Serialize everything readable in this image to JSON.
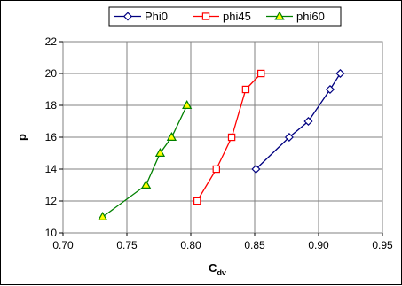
{
  "chart_data": {
    "type": "line",
    "title": "",
    "xlabel": "C",
    "xlabel_sub": "dv",
    "ylabel": "p",
    "xlim": [
      0.7,
      0.95
    ],
    "ylim": [
      10,
      22
    ],
    "xticks": [
      "0.70",
      "0.75",
      "0.80",
      "0.85",
      "0.90",
      "0.95"
    ],
    "yticks": [
      "10",
      "12",
      "14",
      "16",
      "18",
      "20",
      "22"
    ],
    "grid": true,
    "legend_position": "top",
    "series": [
      {
        "name": "Phi0",
        "color": "#000080",
        "marker": "diamond",
        "points": [
          [
            0.851,
            14
          ],
          [
            0.877,
            16
          ],
          [
            0.892,
            17
          ],
          [
            0.909,
            19
          ],
          [
            0.917,
            20
          ]
        ]
      },
      {
        "name": "phi45",
        "color": "#ff0000",
        "marker": "square",
        "points": [
          [
            0.805,
            12
          ],
          [
            0.82,
            14
          ],
          [
            0.832,
            16
          ],
          [
            0.843,
            19
          ],
          [
            0.855,
            20
          ]
        ]
      },
      {
        "name": "phi60",
        "color": "#008000",
        "marker": "triangle",
        "marker_fill": "#ffff00",
        "points": [
          [
            0.731,
            11
          ],
          [
            0.765,
            13
          ],
          [
            0.776,
            15
          ],
          [
            0.785,
            16
          ],
          [
            0.797,
            18
          ]
        ]
      }
    ]
  }
}
